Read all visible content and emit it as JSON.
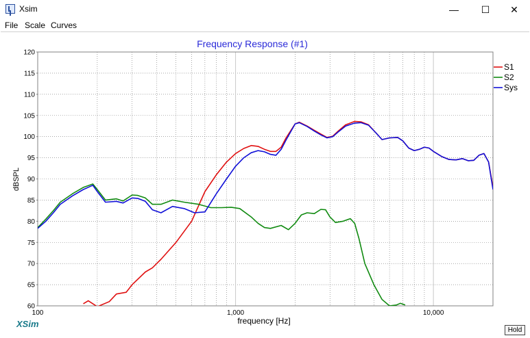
{
  "window": {
    "title": "Xsim",
    "minimize_glyph": "—",
    "maximize_glyph": "☐",
    "close_glyph": "✕"
  },
  "menu": [
    "File",
    "Scale",
    "Curves"
  ],
  "brand": "XSim",
  "hold_label": "Hold",
  "chart_data": {
    "type": "line",
    "title": "Frequency Response (#1)",
    "xlabel": "frequency [Hz]",
    "ylabel": "dBSPL",
    "xscale": "log",
    "xlim": [
      100,
      20000
    ],
    "ylim": [
      60,
      120
    ],
    "x_tick_labels": [
      {
        "value": 100,
        "label": "100"
      },
      {
        "value": 1000,
        "label": "1,000"
      },
      {
        "value": 10000,
        "label": "10,000"
      }
    ],
    "y_ticks": [
      60,
      65,
      70,
      75,
      80,
      85,
      90,
      95,
      100,
      105,
      110,
      115,
      120
    ],
    "grid": true,
    "legend_position": "top-right",
    "colors": {
      "S1": "#e01010",
      "S2": "#108a10",
      "Sys": "#1010d8",
      "title": "#2a2ad8",
      "grid": "#707070"
    },
    "series": [
      {
        "name": "S1",
        "color": "#e01010",
        "points": [
          [
            170,
            60.5
          ],
          [
            180,
            61.2
          ],
          [
            190,
            60.5
          ],
          [
            200,
            59.8
          ],
          [
            230,
            61
          ],
          [
            250,
            62.8
          ],
          [
            280,
            63.2
          ],
          [
            300,
            65
          ],
          [
            350,
            68
          ],
          [
            380,
            69
          ],
          [
            420,
            71
          ],
          [
            500,
            75
          ],
          [
            600,
            80
          ],
          [
            700,
            87
          ],
          [
            800,
            91
          ],
          [
            900,
            94
          ],
          [
            1000,
            96
          ],
          [
            1100,
            97.2
          ],
          [
            1200,
            97.9
          ],
          [
            1300,
            97.7
          ],
          [
            1400,
            97
          ],
          [
            1500,
            96.5
          ],
          [
            1600,
            96.5
          ],
          [
            1700,
            97.5
          ],
          [
            1800,
            99.7
          ],
          [
            2000,
            103
          ],
          [
            2100,
            103.4
          ],
          [
            2300,
            102.5
          ],
          [
            2500,
            101.5
          ],
          [
            2700,
            100.6
          ],
          [
            2900,
            99.8
          ],
          [
            3100,
            100.1
          ],
          [
            3300,
            101.3
          ],
          [
            3600,
            102.8
          ],
          [
            4000,
            103.6
          ],
          [
            4300,
            103.5
          ],
          [
            4700,
            102.8
          ],
          [
            5100,
            101
          ],
          [
            5500,
            99.3
          ],
          [
            6000,
            99.7
          ],
          [
            6600,
            99.8
          ],
          [
            7000,
            99
          ],
          [
            7500,
            97.3
          ],
          [
            8000,
            96.7
          ],
          [
            8500,
            97
          ],
          [
            9000,
            97.5
          ],
          [
            9500,
            97.3
          ],
          [
            10000,
            96.5
          ],
          [
            11000,
            95.3
          ],
          [
            12000,
            94.6
          ],
          [
            13000,
            94.5
          ],
          [
            14000,
            94.8
          ],
          [
            15000,
            94.3
          ],
          [
            16000,
            94.4
          ],
          [
            17000,
            95.6
          ],
          [
            18000,
            96
          ],
          [
            19000,
            94
          ],
          [
            20000,
            88
          ]
        ]
      },
      {
        "name": "S2",
        "color": "#108a10",
        "points": [
          [
            100,
            78.5
          ],
          [
            110,
            80.5
          ],
          [
            120,
            82.5
          ],
          [
            130,
            84.5
          ],
          [
            150,
            86.5
          ],
          [
            170,
            88
          ],
          [
            190,
            88.8
          ],
          [
            200,
            87.5
          ],
          [
            220,
            85
          ],
          [
            250,
            85.3
          ],
          [
            270,
            84.8
          ],
          [
            300,
            86.2
          ],
          [
            320,
            86.1
          ],
          [
            350,
            85.5
          ],
          [
            380,
            84
          ],
          [
            420,
            84
          ],
          [
            480,
            85
          ],
          [
            550,
            84.5
          ],
          [
            650,
            84
          ],
          [
            750,
            83.2
          ],
          [
            850,
            83.2
          ],
          [
            950,
            83.3
          ],
          [
            1050,
            83
          ],
          [
            1200,
            81
          ],
          [
            1300,
            79.5
          ],
          [
            1400,
            78.5
          ],
          [
            1500,
            78.3
          ],
          [
            1700,
            79
          ],
          [
            1850,
            78
          ],
          [
            2000,
            79.5
          ],
          [
            2150,
            81.5
          ],
          [
            2300,
            82
          ],
          [
            2500,
            81.8
          ],
          [
            2700,
            82.8
          ],
          [
            2850,
            82.7
          ],
          [
            3000,
            81
          ],
          [
            3200,
            79.7
          ],
          [
            3500,
            80
          ],
          [
            3800,
            80.6
          ],
          [
            4000,
            79.5
          ],
          [
            4200,
            76
          ],
          [
            4500,
            70
          ],
          [
            5000,
            65
          ],
          [
            5500,
            61.5
          ],
          [
            6000,
            60
          ],
          [
            6500,
            60.2
          ],
          [
            6800,
            60.6
          ],
          [
            7200,
            60.2
          ]
        ]
      },
      {
        "name": "Sys",
        "color": "#1010d8",
        "points": [
          [
            100,
            78.3
          ],
          [
            110,
            80
          ],
          [
            120,
            82
          ],
          [
            130,
            84
          ],
          [
            150,
            86
          ],
          [
            170,
            87.5
          ],
          [
            190,
            88.5
          ],
          [
            200,
            87
          ],
          [
            220,
            84.5
          ],
          [
            250,
            84.7
          ],
          [
            270,
            84.3
          ],
          [
            300,
            85.5
          ],
          [
            320,
            85.4
          ],
          [
            350,
            84.7
          ],
          [
            380,
            82.7
          ],
          [
            420,
            82
          ],
          [
            480,
            83.5
          ],
          [
            550,
            83
          ],
          [
            620,
            82
          ],
          [
            700,
            82.2
          ],
          [
            800,
            86.5
          ],
          [
            900,
            90
          ],
          [
            1000,
            93
          ],
          [
            1100,
            95
          ],
          [
            1200,
            96.2
          ],
          [
            1300,
            96.7
          ],
          [
            1400,
            96.4
          ],
          [
            1500,
            95.8
          ],
          [
            1600,
            95.6
          ],
          [
            1700,
            97
          ],
          [
            1800,
            99.2
          ],
          [
            2000,
            103
          ],
          [
            2100,
            103.3
          ],
          [
            2300,
            102.4
          ],
          [
            2500,
            101.3
          ],
          [
            2700,
            100.4
          ],
          [
            2900,
            99.7
          ],
          [
            3100,
            100
          ],
          [
            3300,
            101.1
          ],
          [
            3600,
            102.5
          ],
          [
            4000,
            103.2
          ],
          [
            4300,
            103.3
          ],
          [
            4700,
            102.7
          ],
          [
            5100,
            101
          ],
          [
            5500,
            99.3
          ],
          [
            6000,
            99.7
          ],
          [
            6600,
            99.8
          ],
          [
            7000,
            99
          ],
          [
            7500,
            97.3
          ],
          [
            8000,
            96.7
          ],
          [
            8500,
            97
          ],
          [
            9000,
            97.5
          ],
          [
            9500,
            97.3
          ],
          [
            10000,
            96.5
          ],
          [
            11000,
            95.3
          ],
          [
            12000,
            94.6
          ],
          [
            13000,
            94.5
          ],
          [
            14000,
            94.8
          ],
          [
            15000,
            94.3
          ],
          [
            16000,
            94.4
          ],
          [
            17000,
            95.6
          ],
          [
            18000,
            96
          ],
          [
            19000,
            94
          ],
          [
            20000,
            87.5
          ]
        ]
      }
    ]
  }
}
